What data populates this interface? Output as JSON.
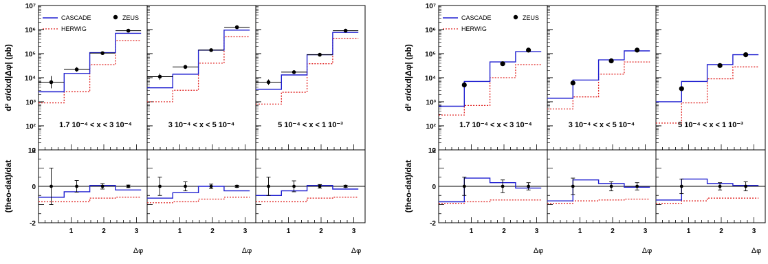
{
  "figure": {
    "y_axis_label_top": "d² σ/dxd|Δφ| (pb)",
    "y_axis_label_bottom": "(theo-dat)/dat",
    "x_axis_label": "Δφ",
    "legend": {
      "cascade": "CASCADE",
      "herwig": "HERWIG",
      "zeus": "ZEUS"
    },
    "colors": {
      "cascade": "#1f1fd0",
      "herwig": "#e0201f",
      "data": "#000000"
    }
  },
  "chart_data": [
    {
      "type": "line",
      "title": "",
      "xlabel": "Δφ",
      "ylabel_top": "d² σ/dxd|Δφ| (pb)",
      "ylabel_bottom": "(theo-dat)/dat",
      "top_yscale": "log",
      "top_ylim": [
        10,
        10000000
      ],
      "top_yticks": [
        "10",
        "10²",
        "10³",
        "10⁴",
        "10⁵",
        "10⁶",
        "10⁷"
      ],
      "bottom_ylim": [
        -2,
        2
      ],
      "bottom_yticks": [
        "-2",
        "0",
        "2"
      ],
      "xlim": [
        0,
        3.2
      ],
      "xticks": [
        "1",
        "2",
        "3"
      ],
      "bin_edges": [
        0,
        0.785,
        1.571,
        2.356,
        3.1416
      ],
      "legend_position": "top-left",
      "panels": [
        {
          "label": "1.7 10⁻⁴ < x < 3 10⁻⁴",
          "data": {
            "x": [
              0.39,
              1.17,
              1.96,
              2.75
            ],
            "y": [
              6500,
              22000,
              105000,
              900000
            ],
            "xerr": [
              0.39,
              0.39,
              0.39,
              0.39
            ],
            "yerr_factor": [
              1.8,
              1.25,
              1.15,
              1.12
            ]
          },
          "cascade": [
            2600,
            15000,
            110000,
            700000
          ],
          "herwig": [
            900,
            2600,
            35000,
            350000
          ],
          "ratio": {
            "data_x": [
              0.39,
              1.17,
              1.96,
              2.75
            ],
            "data_y": [
              0,
              0,
              0,
              0
            ],
            "data_err": [
              1.0,
              0.32,
              0.15,
              0.07
            ],
            "cascade": [
              -0.6,
              -0.3,
              0.05,
              -0.2
            ],
            "herwig": [
              -0.85,
              -0.85,
              -0.65,
              -0.6
            ]
          }
        },
        {
          "label": "3 10⁻⁴ < x < 5 10⁻⁴",
          "data": {
            "x": [
              0.39,
              1.17,
              1.96,
              2.75
            ],
            "y": [
              11000,
              28000,
              140000,
              1250000
            ],
            "xerr": [
              0.39,
              0.39,
              0.39,
              0.39
            ],
            "yerr_factor": [
              1.35,
              1.2,
              1.12,
              1.12
            ]
          },
          "cascade": [
            3800,
            14000,
            140000,
            950000
          ],
          "herwig": [
            1000,
            3000,
            40000,
            500000
          ],
          "ratio": {
            "data_x": [
              0.39,
              1.17,
              1.96,
              2.75
            ],
            "data_y": [
              0,
              0,
              0,
              0
            ],
            "data_err": [
              0.5,
              0.25,
              0.12,
              0.06
            ],
            "cascade": [
              -0.65,
              -0.35,
              0.0,
              -0.25
            ],
            "herwig": [
              -0.9,
              -0.85,
              -0.7,
              -0.6
            ]
          }
        },
        {
          "label": "5 10⁻⁴ < x < 1 10⁻³",
          "data": {
            "x": [
              0.39,
              1.17,
              1.96,
              2.75
            ],
            "y": [
              6500,
              17000,
              90000,
              900000
            ],
            "xerr": [
              0.39,
              0.39,
              0.39,
              0.39
            ],
            "yerr_factor": [
              1.3,
              1.2,
              1.12,
              1.12
            ]
          },
          "cascade": [
            3300,
            13000,
            90000,
            760000
          ],
          "herwig": [
            800,
            2500,
            38000,
            430000
          ],
          "ratio": {
            "data_x": [
              0.39,
              1.17,
              1.96,
              2.75
            ],
            "data_y": [
              0,
              0,
              0,
              0
            ],
            "data_err": [
              0.5,
              0.3,
              0.1,
              0.06
            ],
            "cascade": [
              -0.5,
              -0.25,
              0.05,
              -0.15
            ],
            "herwig": [
              -0.85,
              -0.85,
              -0.65,
              -0.6
            ]
          }
        }
      ]
    },
    {
      "type": "line",
      "title": "",
      "xlabel": "Δφ",
      "ylabel_top": "d² σ/dxd|Δφ| (pb)",
      "ylabel_bottom": "(theo-dat)/dat",
      "top_yscale": "log",
      "top_ylim": [
        10,
        10000000
      ],
      "top_yticks": [
        "10",
        "10²",
        "10³",
        "10⁴",
        "10⁵",
        "10⁶",
        "10⁷"
      ],
      "bottom_ylim": [
        -2,
        2
      ],
      "bottom_yticks": [
        "-2",
        "0",
        "2"
      ],
      "xlim": [
        0,
        3.2
      ],
      "xticks": [
        "1",
        "2",
        "3"
      ],
      "bin_edges": [
        0,
        0.785,
        1.571,
        2.356,
        3.1416
      ],
      "legend_position": "top-left",
      "panels": [
        {
          "label": "1.7 10⁻⁴ < x < 3 10⁻⁴",
          "data": {
            "x": [
              0.785,
              1.96,
              2.75
            ],
            "y": [
              5000,
              38000,
              140000
            ],
            "xerr": [
              0,
              0,
              0
            ],
            "yerr_factor": [
              1.08,
              1.08,
              1.08
            ]
          },
          "cascade": [
            650,
            7000,
            45000,
            120000
          ],
          "herwig": [
            280,
            700,
            10000,
            35000
          ],
          "ratio": {
            "data_x": [
              0.785,
              1.96,
              2.75
            ],
            "data_y": [
              0,
              0,
              0
            ],
            "data_err": [
              0.5,
              0.35,
              0.2
            ],
            "cascade": [
              -0.85,
              0.45,
              0.2,
              -0.1
            ],
            "herwig": [
              -0.95,
              -0.85,
              -0.75,
              -0.75
            ]
          }
        },
        {
          "label": "3 10⁻⁴ < x < 5 10⁻⁴",
          "data": {
            "x": [
              0.785,
              1.96,
              2.75
            ],
            "y": [
              6000,
              50000,
              140000
            ],
            "xerr": [
              0,
              0,
              0
            ],
            "yerr_factor": [
              1.08,
              1.08,
              1.08
            ]
          },
          "cascade": [
            1400,
            8000,
            55000,
            130000
          ],
          "herwig": [
            500,
            1600,
            14000,
            45000
          ],
          "ratio": {
            "data_x": [
              0.785,
              1.96,
              2.75
            ],
            "data_y": [
              0,
              0,
              0
            ],
            "data_err": [
              0.45,
              0.25,
              0.2
            ],
            "cascade": [
              -0.8,
              0.35,
              0.15,
              -0.05
            ],
            "herwig": [
              -0.95,
              -0.8,
              -0.75,
              -0.7
            ]
          }
        },
        {
          "label": "5 10⁻⁴ < x < 1 10⁻³",
          "data": {
            "x": [
              0.785,
              1.96,
              2.75
            ],
            "y": [
              3500,
              32000,
              90000
            ],
            "xerr": [
              0,
              0,
              0
            ],
            "yerr_factor": [
              1.08,
              1.08,
              1.08
            ]
          },
          "cascade": [
            1000,
            7000,
            35000,
            90000
          ],
          "herwig": [
            130,
            900,
            9000,
            28000
          ],
          "ratio": {
            "data_x": [
              0.785,
              1.96,
              2.75
            ],
            "data_y": [
              0,
              0,
              0
            ],
            "data_err": [
              0.4,
              0.2,
              0.25
            ],
            "cascade": [
              -0.75,
              0.4,
              0.15,
              0.05
            ],
            "herwig": [
              -0.95,
              -0.8,
              -0.65,
              -0.65
            ]
          }
        }
      ]
    }
  ]
}
